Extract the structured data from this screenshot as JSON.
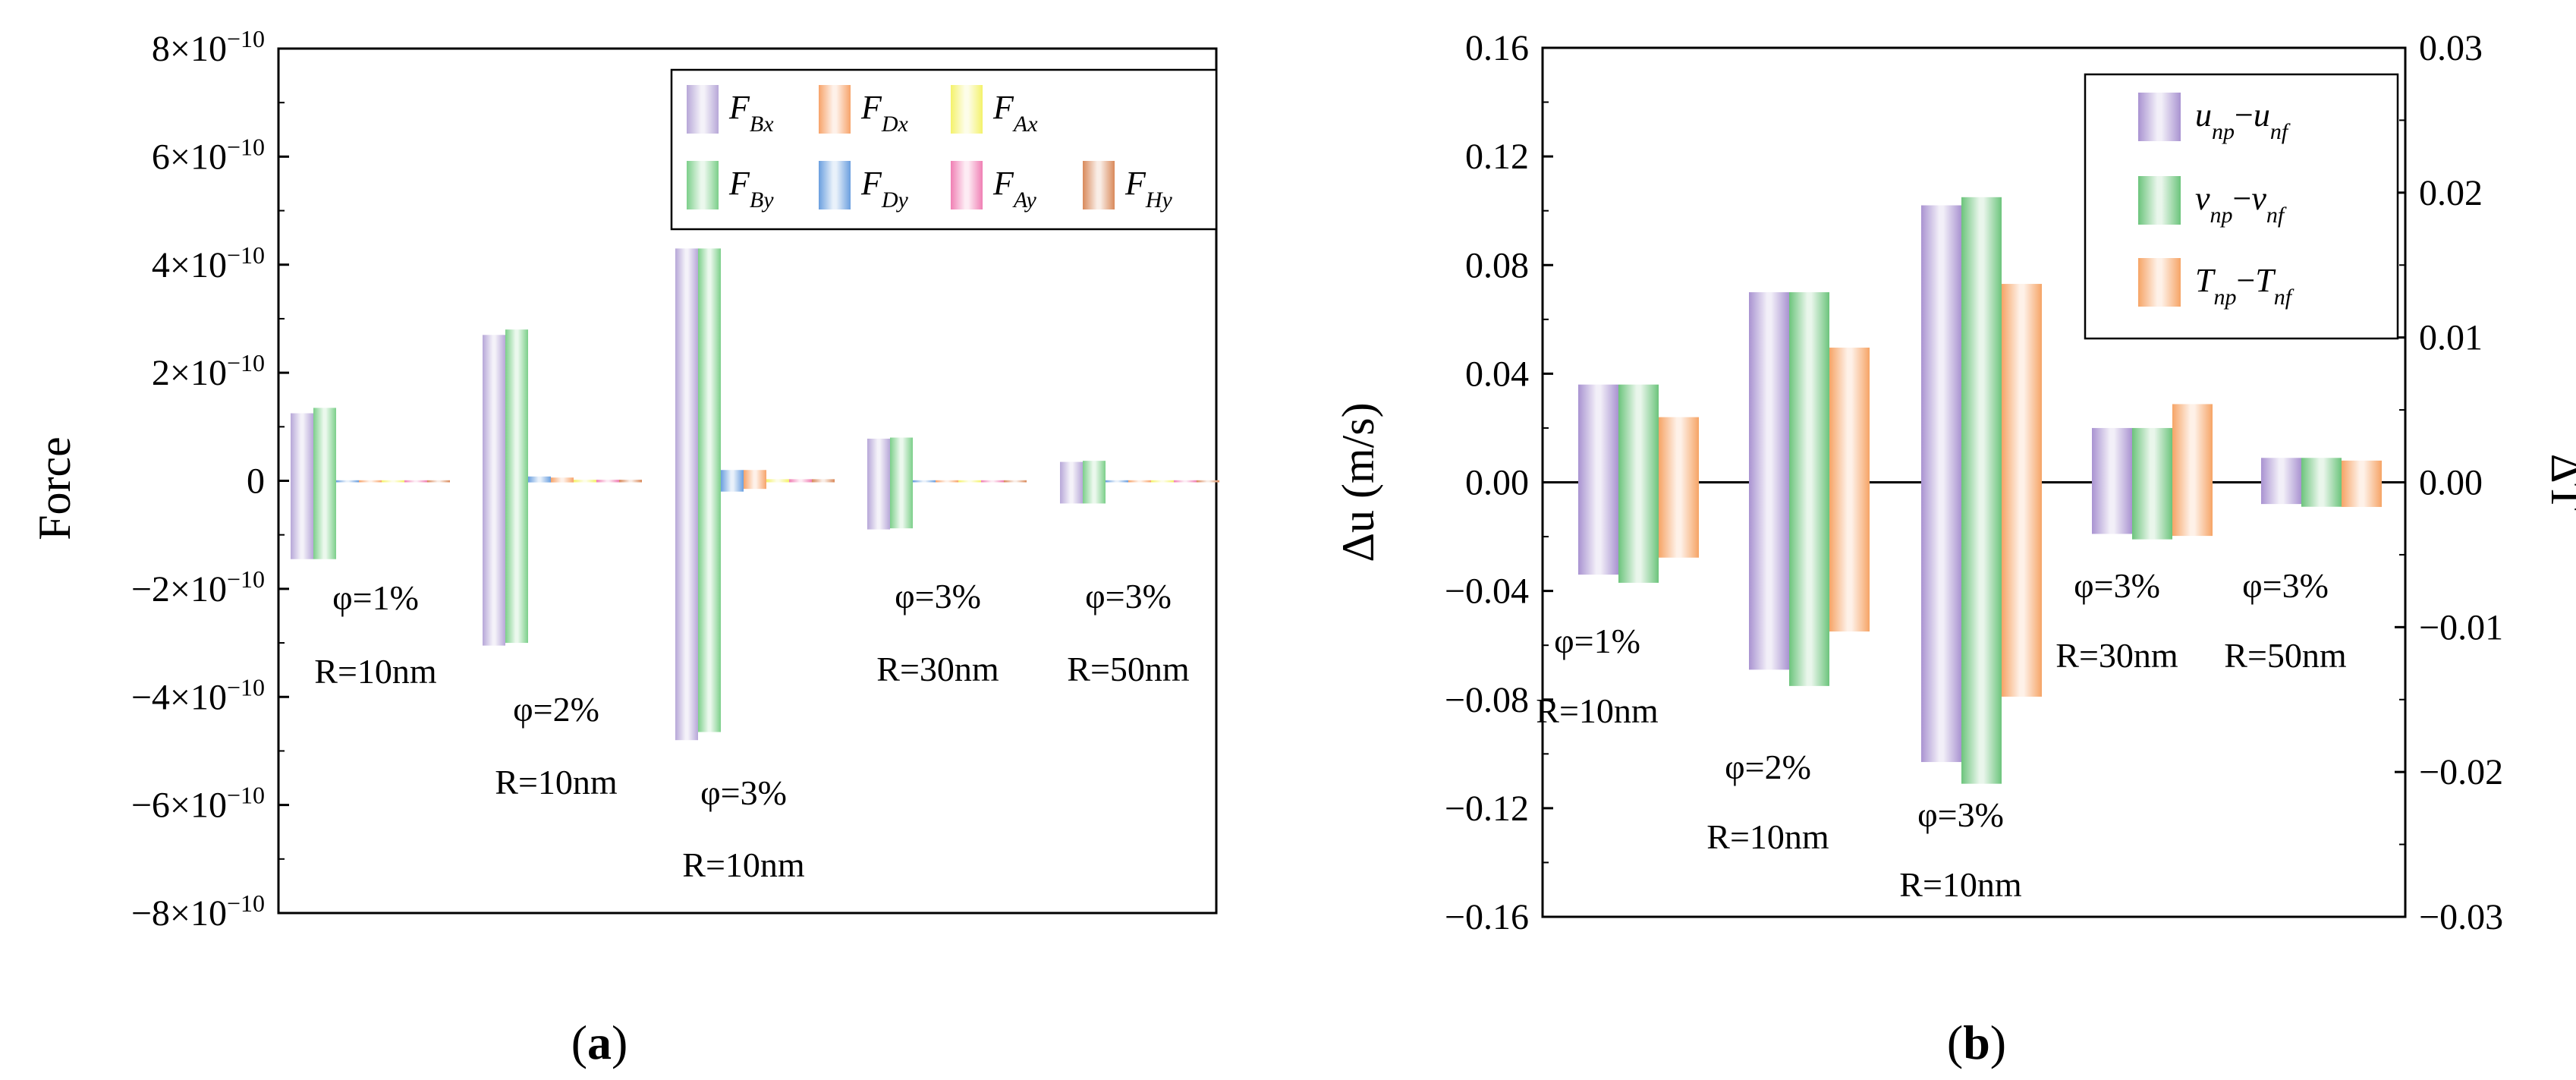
{
  "colors": {
    "FBx": "#b7a7d8",
    "FDx": "#f7a36a",
    "FAx": "#f4f26a",
    "FBy": "#7ccf8a",
    "FDy": "#6a9fdf",
    "FAy": "#f07fb4",
    "FHy": "#d9895a",
    "u": "#a993d1",
    "v": "#6cc47c",
    "T": "#f6a466"
  },
  "chart_data": [
    {
      "type": "bar",
      "panel_label": "(a)",
      "ylabel": "Force",
      "ylim": [
        -8e-10,
        8e-10
      ],
      "yticks": [
        "8×10−10",
        "6×10−10",
        "4×10−10",
        "2×10−10",
        "0",
        "−2×10−10",
        "−4×10−10",
        "−6×10−10",
        "−8×10−10"
      ],
      "ytick_values": [
        8e-10,
        6e-10,
        4e-10,
        2e-10,
        0,
        -2e-10,
        -4e-10,
        -6e-10,
        -8e-10
      ],
      "legend": [
        {
          "key": "FBx",
          "base": "F",
          "sub": "Bx"
        },
        {
          "key": "FDx",
          "base": "F",
          "sub": "Dx"
        },
        {
          "key": "FAx",
          "base": "F",
          "sub": "Ax"
        },
        {
          "key": "FBy",
          "base": "F",
          "sub": "By"
        },
        {
          "key": "FDy",
          "base": "F",
          "sub": "Dy"
        },
        {
          "key": "FAy",
          "base": "F",
          "sub": "Ay"
        },
        {
          "key": "FHy",
          "base": "F",
          "sub": "Hy"
        }
      ],
      "groups": [
        {
          "phi": "φ=1%",
          "r": "R=10nm",
          "series": {
            "FBx": [
              1.25e-10,
              -1.45e-10
            ],
            "FBy": [
              1.35e-10,
              -1.45e-10
            ],
            "FDy": [
              1e-12,
              -1e-12
            ],
            "FDx": [
              1e-12,
              -1e-12
            ],
            "FAx": [
              1e-12,
              -1e-12
            ],
            "FAy": [
              1e-12,
              -1e-12
            ],
            "FHy": [
              1e-12,
              -1e-12
            ]
          }
        },
        {
          "phi": "φ=2%",
          "r": "R=10nm",
          "series": {
            "FBx": [
              2.7e-10,
              -3.05e-10
            ],
            "FBy": [
              2.8e-10,
              -3e-10
            ],
            "FDy": [
              8e-12,
              -3e-12
            ],
            "FDx": [
              6e-12,
              -3e-12
            ],
            "FAx": [
              2e-12,
              -1e-12
            ],
            "FAy": [
              2e-12,
              -1e-12
            ],
            "FHy": [
              2e-12,
              -1e-12
            ]
          }
        },
        {
          "phi": "φ=3%",
          "r": "R=10nm",
          "series": {
            "FBx": [
              4.3e-10,
              -4.8e-10
            ],
            "FBy": [
              4.3e-10,
              -4.65e-10
            ],
            "FDy": [
              2e-11,
              -2e-11
            ],
            "FDx": [
              2e-11,
              -1.5e-11
            ],
            "FAx": [
              3e-12,
              -2e-12
            ],
            "FAy": [
              3e-12,
              -2e-12
            ],
            "FHy": [
              3e-12,
              -2e-12
            ]
          }
        },
        {
          "phi": "φ=3%",
          "r": "R=30nm",
          "series": {
            "FBx": [
              7.8e-11,
              -9e-11
            ],
            "FBy": [
              8e-11,
              -8.8e-11
            ],
            "FDy": [
              1e-12,
              -1e-12
            ],
            "FDx": [
              1e-12,
              -1e-12
            ],
            "FAx": [
              1e-12,
              -1e-12
            ],
            "FAy": [
              1e-12,
              -1e-12
            ],
            "FHy": [
              1e-12,
              -1e-12
            ]
          }
        },
        {
          "phi": "φ=3%",
          "r": "R=50nm",
          "series": {
            "FBx": [
              3.5e-11,
              -4.2e-11
            ],
            "FBy": [
              3.7e-11,
              -4.2e-11
            ],
            "FDy": [
              1e-12,
              -1e-12
            ],
            "FDx": [
              1e-12,
              -1e-12
            ],
            "FAx": [
              1e-12,
              -1e-12
            ],
            "FAy": [
              1e-12,
              -1e-12
            ],
            "FHy": [
              1e-12,
              -1e-12
            ]
          }
        }
      ]
    },
    {
      "type": "bar",
      "panel_label": "(b)",
      "ylabel": "Δu (m/s)",
      "ylim": [
        -0.16,
        0.16
      ],
      "yticks": [
        "0.16",
        "0.12",
        "0.08",
        "0.04",
        "0.00",
        "−0.04",
        "−0.08",
        "−0.12",
        "−0.16"
      ],
      "ytick_values": [
        0.16,
        0.12,
        0.08,
        0.04,
        0,
        -0.04,
        -0.08,
        -0.12,
        -0.16
      ],
      "ylabel_right": "ΔT",
      "ylim_right": [
        -0.03,
        0.03
      ],
      "yticks_right": [
        "0.03",
        "0.02",
        "0.01",
        "0.00",
        "−0.01",
        "−0.02",
        "−0.03"
      ],
      "ytick_values_right": [
        0.03,
        0.02,
        0.01,
        0,
        -0.01,
        -0.02,
        -0.03
      ],
      "legend": [
        {
          "key": "u",
          "a": "u",
          "as": "np",
          "b": "u",
          "bs": "nf"
        },
        {
          "key": "v",
          "a": "v",
          "as": "np",
          "b": "v",
          "bs": "nf"
        },
        {
          "key": "T",
          "a": "T",
          "as": "np",
          "b": "T",
          "bs": "nf"
        }
      ],
      "groups": [
        {
          "phi": "φ=1%",
          "r": "R=10nm",
          "u": [
            0.036,
            -0.034
          ],
          "v": [
            0.036,
            -0.037
          ],
          "T": [
            0.0045,
            -0.0052
          ]
        },
        {
          "phi": "φ=2%",
          "r": "R=10nm",
          "u": [
            0.07,
            -0.069
          ],
          "v": [
            0.07,
            -0.075
          ],
          "T": [
            0.0093,
            -0.0103
          ]
        },
        {
          "phi": "φ=3%",
          "r": "R=10nm",
          "u": [
            0.102,
            -0.103
          ],
          "v": [
            0.105,
            -0.111
          ],
          "T": [
            0.0137,
            -0.0148
          ]
        },
        {
          "phi": "φ=3%",
          "r": "R=30nm",
          "u": [
            0.02,
            -0.019
          ],
          "v": [
            0.02,
            -0.021
          ],
          "T": [
            0.0054,
            -0.0037
          ]
        },
        {
          "phi": "φ=3%",
          "r": "R=50nm",
          "u": [
            0.009,
            -0.008
          ],
          "v": [
            0.009,
            -0.009
          ],
          "T": [
            0.0015,
            -0.0017
          ]
        }
      ]
    }
  ]
}
